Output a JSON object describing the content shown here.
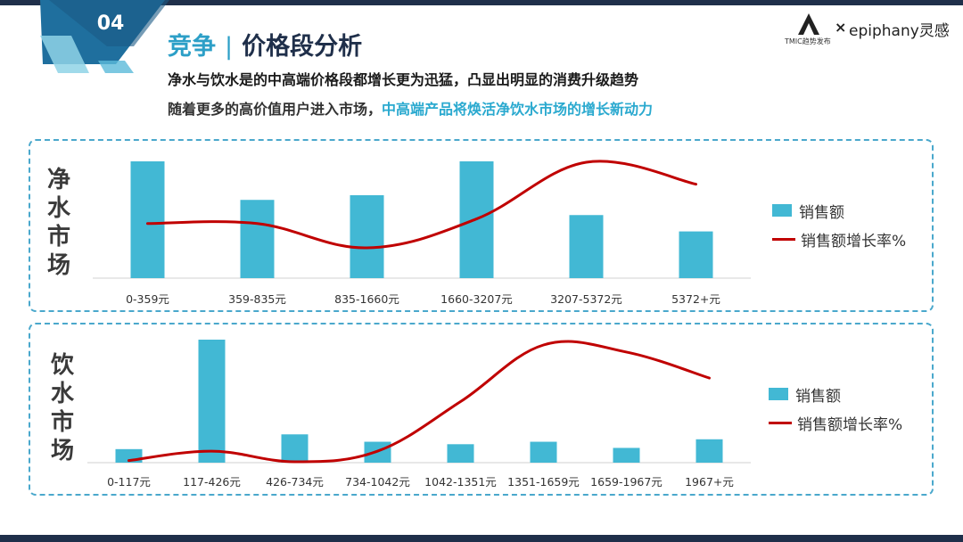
{
  "badge": {
    "number": "04"
  },
  "header": {
    "title_left": "竞争",
    "title_sep": "|",
    "title_right": "价格段分析",
    "subtitle1": "净水与饮水是的中高端价格段都增长更为迅猛，凸显出明显的消费升级趋势",
    "subtitle2_plain": "随着更多的高价值用户进入市场，",
    "subtitle2_highlight": "中高端产品将焕活净饮水市场的增长新动力"
  },
  "logo": {
    "sub": "TMIC趋势发布",
    "x": "×",
    "brand": "epiphany灵感"
  },
  "colors": {
    "bar": "#42b8d4",
    "line": "#c00000",
    "accent": "#2c9fc7"
  },
  "chart_data": [
    {
      "type": "bar",
      "title": "净水市场",
      "categories": [
        "0-359元",
        "359-835元",
        "835-1660元",
        "1660-3207元",
        "3207-5372元",
        "5372+元"
      ],
      "series": [
        {
          "name": "销售额",
          "type": "bar",
          "values": [
            100,
            67,
            71,
            100,
            54,
            40
          ]
        },
        {
          "name": "销售额增长率%",
          "type": "line",
          "values": [
            47,
            47,
            26,
            51,
            100,
            81
          ]
        }
      ],
      "legend_position": "right",
      "grid": false
    },
    {
      "type": "bar",
      "title": "饮水市场",
      "categories": [
        "0-117元",
        "117-426元",
        "426-734元",
        "734-1042元",
        "1042-1351元",
        "1351-1659元",
        "1659-1967元",
        "1967+元"
      ],
      "series": [
        {
          "name": "销售额",
          "type": "bar",
          "values": [
            11,
            100,
            23,
            17,
            15,
            17,
            12,
            19
          ]
        },
        {
          "name": "销售额增长率%",
          "type": "line",
          "values": [
            2,
            10,
            1,
            10,
            52,
            100,
            94,
            72
          ]
        }
      ],
      "legend_position": "right",
      "grid": false
    }
  ]
}
